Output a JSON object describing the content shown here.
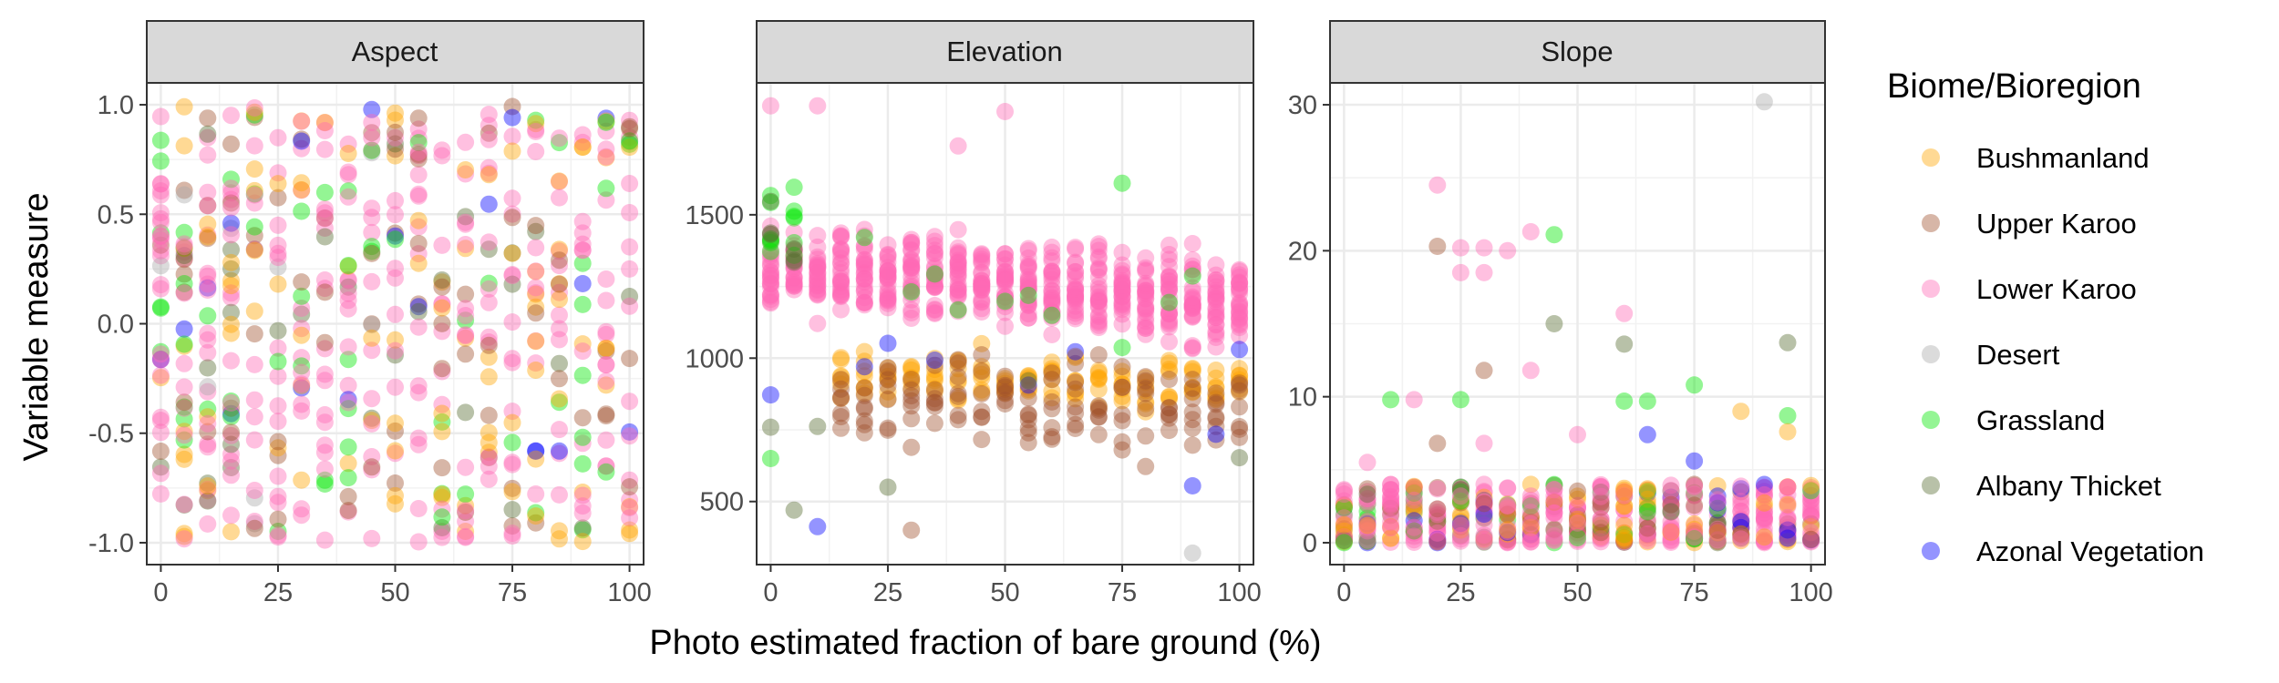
{
  "chart_data": [
    {
      "type": "scatter",
      "facet": "Aspect",
      "xlabel": "Photo estimated fraction of bare ground (%)",
      "ylabel": "Variable measure",
      "xlim": [
        -3,
        103
      ],
      "ylim": [
        -1.1,
        1.1
      ],
      "x_ticks": [
        0,
        25,
        50,
        75,
        100
      ],
      "x_tick_labels": [
        "0",
        "25",
        "50",
        "75",
        "100"
      ],
      "y_ticks": [
        1.0,
        0.5,
        0.0,
        -0.5,
        -1.0
      ],
      "y_tick_labels": [
        "1.0",
        "0.5",
        "0.0",
        "-0.5",
        "-1.0"
      ],
      "x_values": [
        0,
        5,
        10,
        15,
        20,
        25,
        30,
        35,
        40,
        45,
        50,
        55,
        60,
        65,
        70,
        75,
        80,
        85,
        90,
        95,
        100
      ],
      "y_range_per_x": [
        -1.0,
        1.0
      ],
      "distribution": "uniform"
    },
    {
      "type": "scatter",
      "facet": "Elevation",
      "xlim": [
        -3,
        103
      ],
      "ylim": [
        280,
        1960
      ],
      "x_ticks": [
        0,
        25,
        50,
        75,
        100
      ],
      "x_tick_labels": [
        "0",
        "25",
        "50",
        "75",
        "100"
      ],
      "y_ticks": [
        1500,
        1000,
        500
      ],
      "y_tick_labels": [
        "1500",
        "1000",
        "500"
      ],
      "x_values": [
        0,
        5,
        10,
        15,
        20,
        25,
        30,
        35,
        40,
        45,
        50,
        55,
        60,
        65,
        70,
        75,
        80,
        85,
        90,
        95,
        100
      ],
      "series": [
        {
          "name": "Lower Karoo",
          "center_at_x0": 1320,
          "center_at_x100": 1200,
          "spread": 130
        },
        {
          "name": "Bushmanland",
          "center_at_x0": 920,
          "center_at_x100": 920,
          "spread": 90
        },
        {
          "name": "Upper Karoo",
          "center_at_x0": 870,
          "center_at_x100": 800,
          "spread": 140
        }
      ],
      "notable_points": [
        {
          "x": 0,
          "y": 1880,
          "series": "Lower Karoo"
        },
        {
          "x": 10,
          "y": 1880,
          "series": "Lower Karoo"
        },
        {
          "x": 50,
          "y": 1860,
          "series": "Lower Karoo"
        },
        {
          "x": 40,
          "y": 1740,
          "series": "Lower Karoo"
        },
        {
          "x": 75,
          "y": 1610,
          "series": "Grassland"
        },
        {
          "x": 0,
          "y": 650,
          "series": "Grassland"
        },
        {
          "x": 30,
          "y": 400,
          "series": "Upper Karoo"
        },
        {
          "x": 90,
          "y": 320,
          "series": "Desert"
        },
        {
          "x": 5,
          "y": 470,
          "series": "Albany Thicket"
        },
        {
          "x": 100,
          "y": 1030,
          "series": "Azonal Vegetation"
        }
      ]
    },
    {
      "type": "scatter",
      "facet": "Slope",
      "xlim": [
        -3,
        103
      ],
      "ylim": [
        -1.5,
        31.5
      ],
      "x_ticks": [
        0,
        25,
        50,
        75,
        100
      ],
      "x_tick_labels": [
        "0",
        "25",
        "50",
        "75",
        "100"
      ],
      "y_ticks": [
        30,
        20,
        10,
        0
      ],
      "y_tick_labels": [
        "30",
        "20",
        "10",
        "0"
      ],
      "x_values": [
        0,
        5,
        10,
        15,
        20,
        25,
        30,
        35,
        40,
        45,
        50,
        55,
        60,
        65,
        70,
        75,
        80,
        85,
        90,
        95,
        100
      ],
      "main_range": [
        0,
        4
      ],
      "notable_points": [
        {
          "x": 90,
          "y": 30.2,
          "series": "Desert"
        },
        {
          "x": 20,
          "y": 24.5,
          "series": "Lower Karoo"
        },
        {
          "x": 20,
          "y": 20.3,
          "series": "Upper Karoo"
        },
        {
          "x": 25,
          "y": 20.2,
          "series": "Lower Karoo"
        },
        {
          "x": 30,
          "y": 20.2,
          "series": "Lower Karoo"
        },
        {
          "x": 35,
          "y": 20.0,
          "series": "Lower Karoo"
        },
        {
          "x": 40,
          "y": 21.3,
          "series": "Lower Karoo"
        },
        {
          "x": 45,
          "y": 21.1,
          "series": "Grassland"
        },
        {
          "x": 25,
          "y": 18.5,
          "series": "Lower Karoo"
        },
        {
          "x": 30,
          "y": 18.5,
          "series": "Lower Karoo"
        },
        {
          "x": 45,
          "y": 15.0,
          "series": "Albany Thicket"
        },
        {
          "x": 60,
          "y": 15.7,
          "series": "Lower Karoo"
        },
        {
          "x": 60,
          "y": 13.6,
          "series": "Albany Thicket"
        },
        {
          "x": 95,
          "y": 13.7,
          "series": "Albany Thicket"
        },
        {
          "x": 40,
          "y": 11.8,
          "series": "Lower Karoo"
        },
        {
          "x": 30,
          "y": 11.8,
          "series": "Upper Karoo"
        },
        {
          "x": 75,
          "y": 10.8,
          "series": "Grassland"
        },
        {
          "x": 10,
          "y": 9.8,
          "series": "Grassland"
        },
        {
          "x": 15,
          "y": 9.8,
          "series": "Lower Karoo"
        },
        {
          "x": 25,
          "y": 9.8,
          "series": "Grassland"
        },
        {
          "x": 60,
          "y": 9.7,
          "series": "Grassland"
        },
        {
          "x": 65,
          "y": 9.7,
          "series": "Grassland"
        },
        {
          "x": 85,
          "y": 9.0,
          "series": "Bushmanland"
        },
        {
          "x": 95,
          "y": 8.7,
          "series": "Grassland"
        },
        {
          "x": 95,
          "y": 7.6,
          "series": "Bushmanland"
        },
        {
          "x": 65,
          "y": 7.4,
          "series": "Azonal Vegetation"
        },
        {
          "x": 20,
          "y": 6.8,
          "series": "Upper Karoo"
        },
        {
          "x": 30,
          "y": 6.8,
          "series": "Lower Karoo"
        },
        {
          "x": 50,
          "y": 7.4,
          "series": "Lower Karoo"
        },
        {
          "x": 75,
          "y": 5.6,
          "series": "Azonal Vegetation"
        },
        {
          "x": 5,
          "y": 5.5,
          "series": "Lower Karoo"
        }
      ]
    }
  ],
  "facets": {
    "aspect": "Aspect",
    "elevation": "Elevation",
    "slope": "Slope"
  },
  "axes": {
    "xlabel": "Photo estimated fraction of bare ground (%)",
    "ylabel": "Variable measure"
  },
  "legend": {
    "title": "Biome/Bioregion",
    "items": [
      {
        "name": "Bushmanland",
        "color": "#FFA500"
      },
      {
        "name": "Upper Karoo",
        "color": "#A0522D"
      },
      {
        "name": "Lower Karoo",
        "color": "#FF69B4"
      },
      {
        "name": "Desert",
        "color": "#A9A9A9"
      },
      {
        "name": "Grassland",
        "color": "#00E600"
      },
      {
        "name": "Albany Thicket",
        "color": "#556B2F"
      },
      {
        "name": "Azonal Vegetation",
        "color": "#0000FF"
      }
    ]
  }
}
